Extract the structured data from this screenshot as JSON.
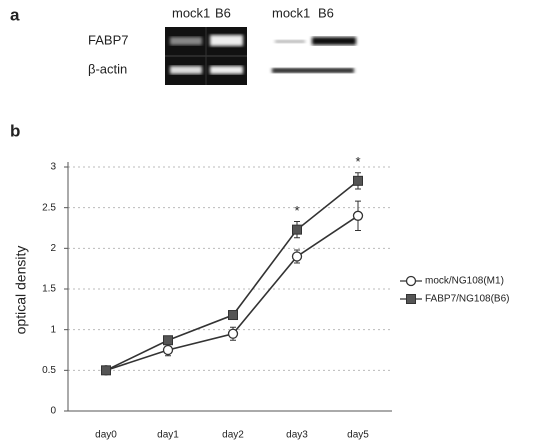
{
  "panel_a": {
    "label": "a",
    "lanes_gel": [
      "mock1",
      "B6"
    ],
    "lanes_blot": [
      "mock1",
      "B6"
    ],
    "rows": [
      "FABP7",
      "β-actin"
    ]
  },
  "chart_data": {
    "type": "line",
    "panel_label": "b",
    "ylabel": "optical density",
    "categories": [
      "day0",
      "day1",
      "day2",
      "day3",
      "day5"
    ],
    "ylim": [
      0,
      3
    ],
    "yticks": [
      0,
      0.5,
      1,
      1.5,
      2,
      2.5,
      3
    ],
    "grid": true,
    "series": [
      {
        "name": "mock/NG108(M1)",
        "color": "#333333",
        "marker": "open-circle",
        "values": [
          0.5,
          0.75,
          0.95,
          1.9,
          2.4
        ],
        "errors": [
          0.02,
          0.07,
          0.08,
          0.08,
          0.18
        ]
      },
      {
        "name": "FABP7/NG108(B6)",
        "color": "#333333",
        "marker": "filled-square",
        "values": [
          0.5,
          0.87,
          1.18,
          2.23,
          2.83
        ],
        "errors": [
          0.02,
          0.05,
          0.03,
          0.1,
          0.1
        ]
      }
    ],
    "annotations": [
      {
        "x": "day3",
        "text": "*"
      },
      {
        "x": "day5",
        "text": "*"
      }
    ]
  }
}
